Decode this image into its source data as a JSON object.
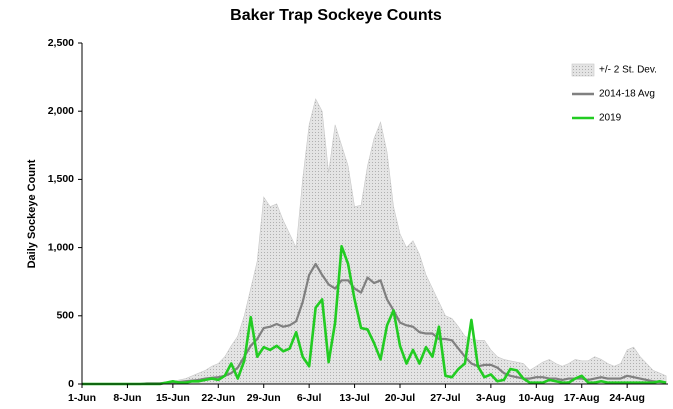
{
  "chart_data": {
    "type": "line",
    "title": "Baker Trap Sockeye Counts",
    "y_label": "Daily Sockeye Count",
    "categories": [
      "1-Jun",
      null,
      null,
      null,
      null,
      null,
      null,
      "8-Jun",
      null,
      null,
      null,
      null,
      null,
      null,
      "15-Jun",
      null,
      null,
      null,
      null,
      null,
      null,
      "22-Jun",
      null,
      null,
      null,
      null,
      null,
      null,
      "29-Jun",
      null,
      null,
      null,
      null,
      null,
      null,
      "6-Jul",
      null,
      null,
      null,
      null,
      null,
      null,
      "13-Jul",
      null,
      null,
      null,
      null,
      null,
      null,
      "20-Jul",
      null,
      null,
      null,
      null,
      null,
      null,
      "27-Jul",
      null,
      null,
      null,
      null,
      null,
      null,
      "3-Aug",
      null,
      null,
      null,
      null,
      null,
      null,
      "10-Aug",
      null,
      null,
      null,
      null,
      null,
      null,
      "17-Aug",
      null,
      null,
      null,
      null,
      null,
      null,
      "24-Aug",
      null,
      null,
      null,
      null,
      null,
      null
    ],
    "series": [
      {
        "name": "+/- 2 St. Dev.",
        "kind": "area",
        "color": "#c8c8c8",
        "values": [
          0,
          0,
          0,
          0,
          0,
          0,
          0,
          0,
          0,
          0,
          5,
          5,
          5,
          5,
          20,
          30,
          40,
          60,
          80,
          100,
          130,
          150,
          200,
          280,
          350,
          500,
          700,
          900,
          1370,
          1300,
          1320,
          1200,
          1100,
          1000,
          1500,
          1900,
          2090,
          2000,
          1550,
          1900,
          1750,
          1600,
          1300,
          1310,
          1600,
          1800,
          1920,
          1700,
          1300,
          1100,
          1000,
          1050,
          950,
          800,
          700,
          600,
          500,
          480,
          420,
          350,
          330,
          320,
          320,
          250,
          200,
          180,
          170,
          160,
          150,
          100,
          130,
          160,
          180,
          150,
          130,
          150,
          180,
          170,
          170,
          200,
          180,
          150,
          130,
          150,
          250,
          270,
          200,
          150,
          100,
          80,
          60
        ]
      },
      {
        "name": "2014-18 Avg",
        "kind": "line",
        "color": "#808080",
        "values": [
          0,
          0,
          0,
          0,
          0,
          0,
          0,
          0,
          0,
          0,
          5,
          5,
          5,
          10,
          10,
          15,
          20,
          25,
          30,
          40,
          45,
          50,
          60,
          80,
          120,
          200,
          280,
          330,
          410,
          420,
          440,
          420,
          430,
          460,
          600,
          800,
          880,
          800,
          730,
          700,
          760,
          760,
          700,
          670,
          780,
          740,
          760,
          620,
          540,
          450,
          430,
          420,
          380,
          370,
          370,
          330,
          330,
          320,
          260,
          200,
          150,
          130,
          140,
          140,
          120,
          80,
          60,
          50,
          40,
          40,
          50,
          50,
          40,
          40,
          30,
          40,
          40,
          40,
          30,
          40,
          50,
          40,
          40,
          40,
          60,
          50,
          40,
          30,
          20,
          15,
          10
        ]
      },
      {
        "name": "2019",
        "kind": "line",
        "color": "#22cc22",
        "values": [
          0,
          0,
          0,
          0,
          0,
          0,
          0,
          0,
          0,
          0,
          0,
          0,
          0,
          10,
          20,
          10,
          10,
          20,
          20,
          30,
          40,
          30,
          60,
          150,
          40,
          170,
          490,
          200,
          270,
          250,
          280,
          240,
          260,
          380,
          200,
          130,
          560,
          620,
          160,
          450,
          1010,
          880,
          620,
          410,
          400,
          300,
          180,
          430,
          540,
          280,
          150,
          250,
          150,
          270,
          200,
          420,
          60,
          50,
          110,
          150,
          470,
          130,
          50,
          70,
          20,
          30,
          110,
          100,
          40,
          10,
          10,
          10,
          30,
          20,
          10,
          10,
          40,
          60,
          10,
          10,
          20,
          10,
          10,
          10,
          10,
          10,
          10,
          10,
          10,
          20,
          10
        ]
      }
    ],
    "ylim": [
      0,
      2500
    ],
    "yticks": [
      0,
      500,
      {
        "value": 1000,
        "label": "1,000"
      },
      {
        "value": 1500,
        "label": "1,500"
      },
      {
        "value": 2000,
        "label": "2,000"
      },
      {
        "value": 2500,
        "label": "2,500"
      }
    ],
    "grid": false,
    "legend": "top-right"
  }
}
